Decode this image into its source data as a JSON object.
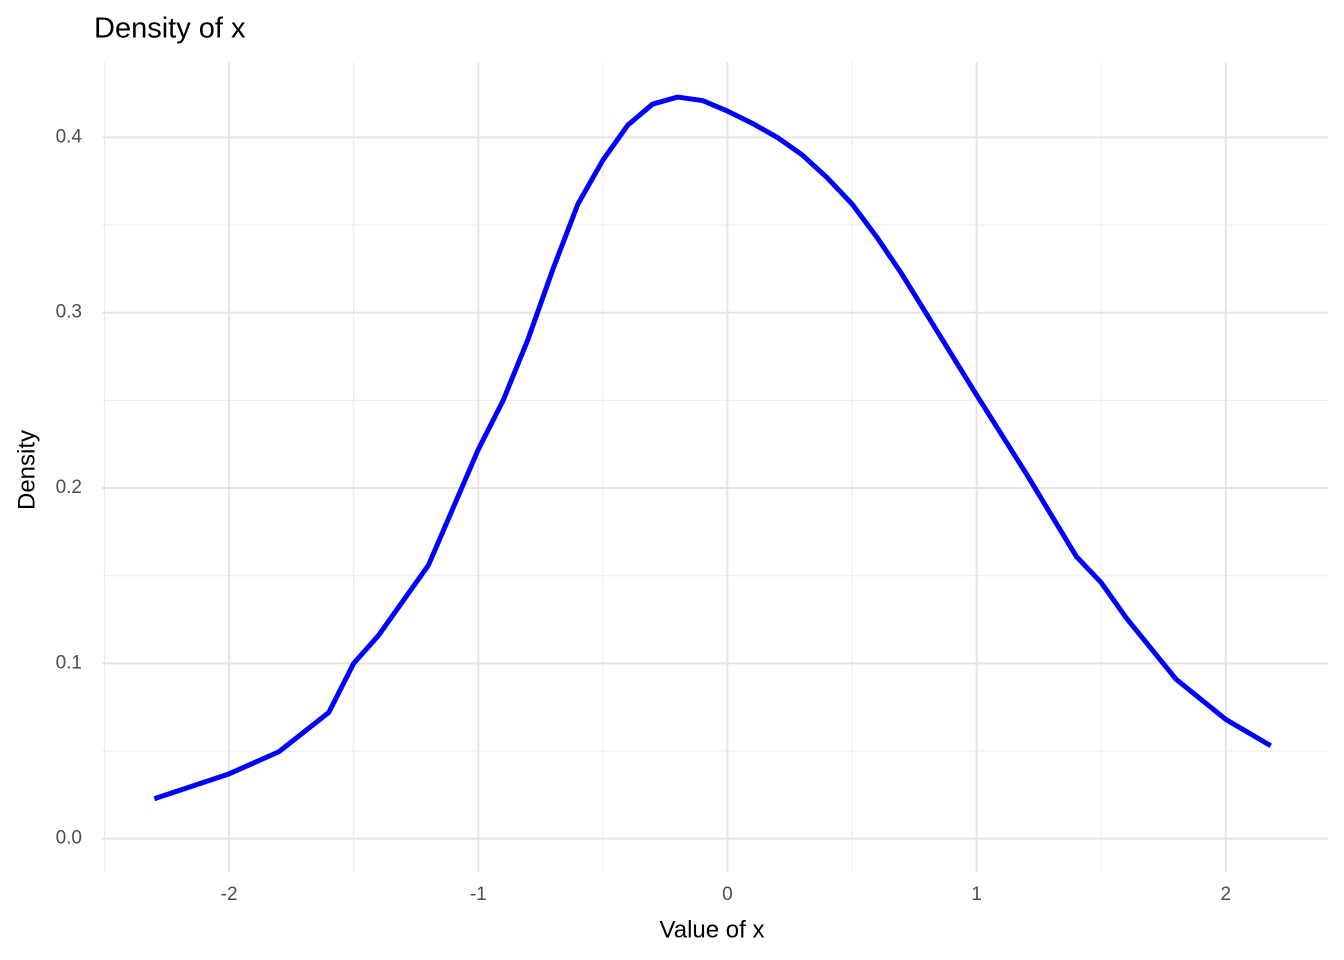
{
  "chart_data": {
    "type": "line",
    "title": "Density of x",
    "xlabel": "Value of x",
    "ylabel": "Density",
    "x": [
      -2.3,
      -2.0,
      -1.8,
      -1.6,
      -1.5,
      -1.4,
      -1.2,
      -1.0,
      -0.9,
      -0.8,
      -0.7,
      -0.6,
      -0.5,
      -0.4,
      -0.3,
      -0.2,
      -0.1,
      0.0,
      0.1,
      0.2,
      0.3,
      0.4,
      0.5,
      0.6,
      0.7,
      0.8,
      0.9,
      1.0,
      1.2,
      1.4,
      1.5,
      1.6,
      1.8,
      2.0,
      2.18
    ],
    "series": [
      {
        "color": "#0000ff",
        "values": [
          0.0228,
          0.037,
          0.0496,
          0.072,
          0.1,
          0.116,
          0.156,
          0.222,
          0.25,
          0.285,
          0.325,
          0.362,
          0.387,
          0.407,
          0.419,
          0.423,
          0.421,
          0.415,
          0.408,
          0.4,
          0.39,
          0.377,
          0.362,
          0.343,
          0.322,
          0.299,
          0.276,
          0.253,
          0.208,
          0.161,
          0.146,
          0.126,
          0.091,
          0.068,
          0.053
        ]
      }
    ],
    "xlim": [
      -2.51,
      2.41
    ],
    "ylim": [
      -0.019,
      0.443
    ],
    "xticks": [
      -2,
      -1,
      0,
      1,
      2
    ],
    "yticks": [
      {
        "value": 0,
        "label": "0.0"
      },
      0.1,
      0.2,
      0.3,
      0.4
    ],
    "x_minor_grid": [
      -2.5,
      -1.5,
      -0.5,
      0.5,
      1.5
    ],
    "y_minor_grid": [
      0.05,
      0.15,
      0.25,
      0.35
    ],
    "grid": true
  }
}
